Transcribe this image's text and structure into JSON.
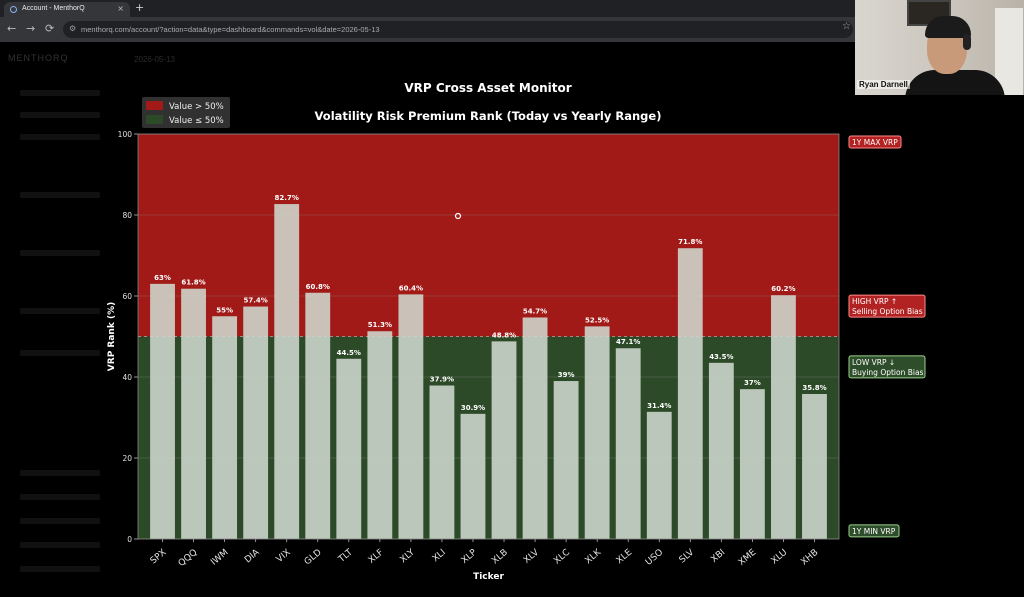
{
  "browser": {
    "tab_title": "Account - MenthorQ",
    "tab_close": "×",
    "new_tab": "+",
    "url": "menthorq.com/account/?action=data&type=dashboard&commands=vol&date=2026-05-13",
    "back": "←",
    "forward": "→",
    "reload": "⟳",
    "site_info": "⚙",
    "star": "☆"
  },
  "app": {
    "logo": "MENTHORQ",
    "date": "2026-05-13"
  },
  "webcam": {
    "name": "Ryan Darnell"
  },
  "colors": {
    "high_zone": "#a11a17",
    "low_zone": "#2d4a28",
    "bar_fill": "#cfd8cf",
    "grid": "#8a8a8a"
  },
  "chart_data": {
    "type": "bar",
    "suptitle": "VRP Cross Asset Monitor",
    "title": "Volatility Risk Premium Rank (Today vs Yearly Range)",
    "xlabel": "Ticker",
    "ylabel": "VRP Rank (%)",
    "ylim": [
      0,
      100
    ],
    "yticks": [
      0,
      20,
      40,
      60,
      80,
      100
    ],
    "threshold": 50,
    "grid": true,
    "legend_position": "top-left",
    "legend": [
      {
        "label": "Value > 50%",
        "color": "#a11a17"
      },
      {
        "label": "Value ≤ 50%",
        "color": "#2d4a28"
      }
    ],
    "categories": [
      "SPX",
      "QQQ",
      "IWM",
      "DIA",
      "VIX",
      "GLD",
      "TLT",
      "XLF",
      "XLY",
      "XLI",
      "XLP",
      "XLB",
      "XLV",
      "XLC",
      "XLK",
      "XLE",
      "USO",
      "SLV",
      "XBI",
      "XME",
      "XLU",
      "XHB"
    ],
    "values": [
      63,
      61.8,
      55,
      57.4,
      82.7,
      60.8,
      44.5,
      51.3,
      60.4,
      37.9,
      30.9,
      48.8,
      54.7,
      39,
      52.5,
      47.1,
      31.4,
      71.8,
      43.5,
      37,
      60.2,
      35.8
    ],
    "value_labels": [
      "63%",
      "61.8%",
      "55%",
      "57.4%",
      "82.7%",
      "60.8%",
      "44.5%",
      "51.3%",
      "60.4%",
      "37.9%",
      "30.9%",
      "48.8%",
      "54.7%",
      "39%",
      "52.5%",
      "47.1%",
      "31.4%",
      "71.8%",
      "43.5%",
      "37%",
      "60.2%",
      "35.8%"
    ],
    "annotations": {
      "max": {
        "text": "1Y MAX VRP",
        "at": 100
      },
      "high": {
        "line1": "HIGH VRP ↑",
        "line2": "Selling Option Bias",
        "at": 57.5
      },
      "low": {
        "line1": "LOW VRP ↓",
        "line2": "Buying Option Bias",
        "at": 42.5
      },
      "min": {
        "text": "1Y MIN VRP",
        "at": 2
      }
    }
  }
}
